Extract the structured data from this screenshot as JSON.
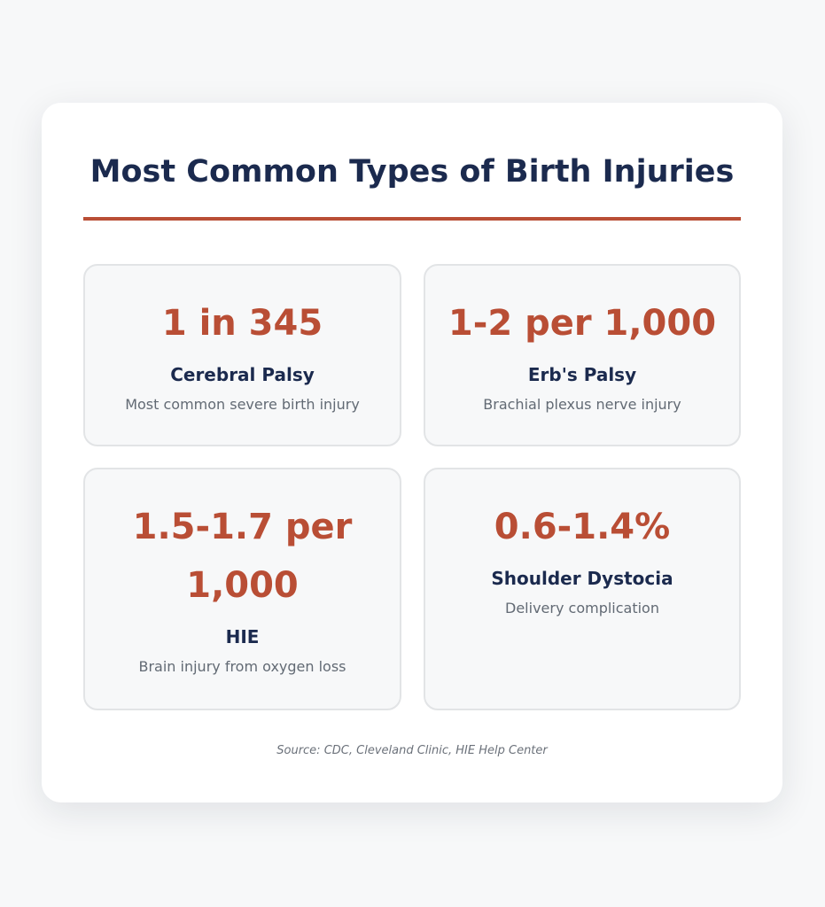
{
  "title": "Most Common Types of Birth Injuries",
  "stats": [
    {
      "value": "1 in 345",
      "name": "Cerebral Palsy",
      "description": "Most common severe birth injury"
    },
    {
      "value": "1-2 per 1,000",
      "name": "Erb's Palsy",
      "description": "Brachial plexus nerve injury"
    },
    {
      "value": "1.5-1.7 per 1,000",
      "name": "HIE",
      "description": "Brain injury from oxygen loss"
    },
    {
      "value": "0.6-1.4%",
      "name": "Shoulder Dystocia",
      "description": "Delivery complication"
    }
  ],
  "source": "Source: CDC, Cleveland Clinic, HIE Help Center",
  "colors": {
    "accent": "#b94e35",
    "heading": "#1b2a4e",
    "muted": "#626a74",
    "card_background": "#ffffff",
    "tile_background": "#f7f8f9"
  }
}
